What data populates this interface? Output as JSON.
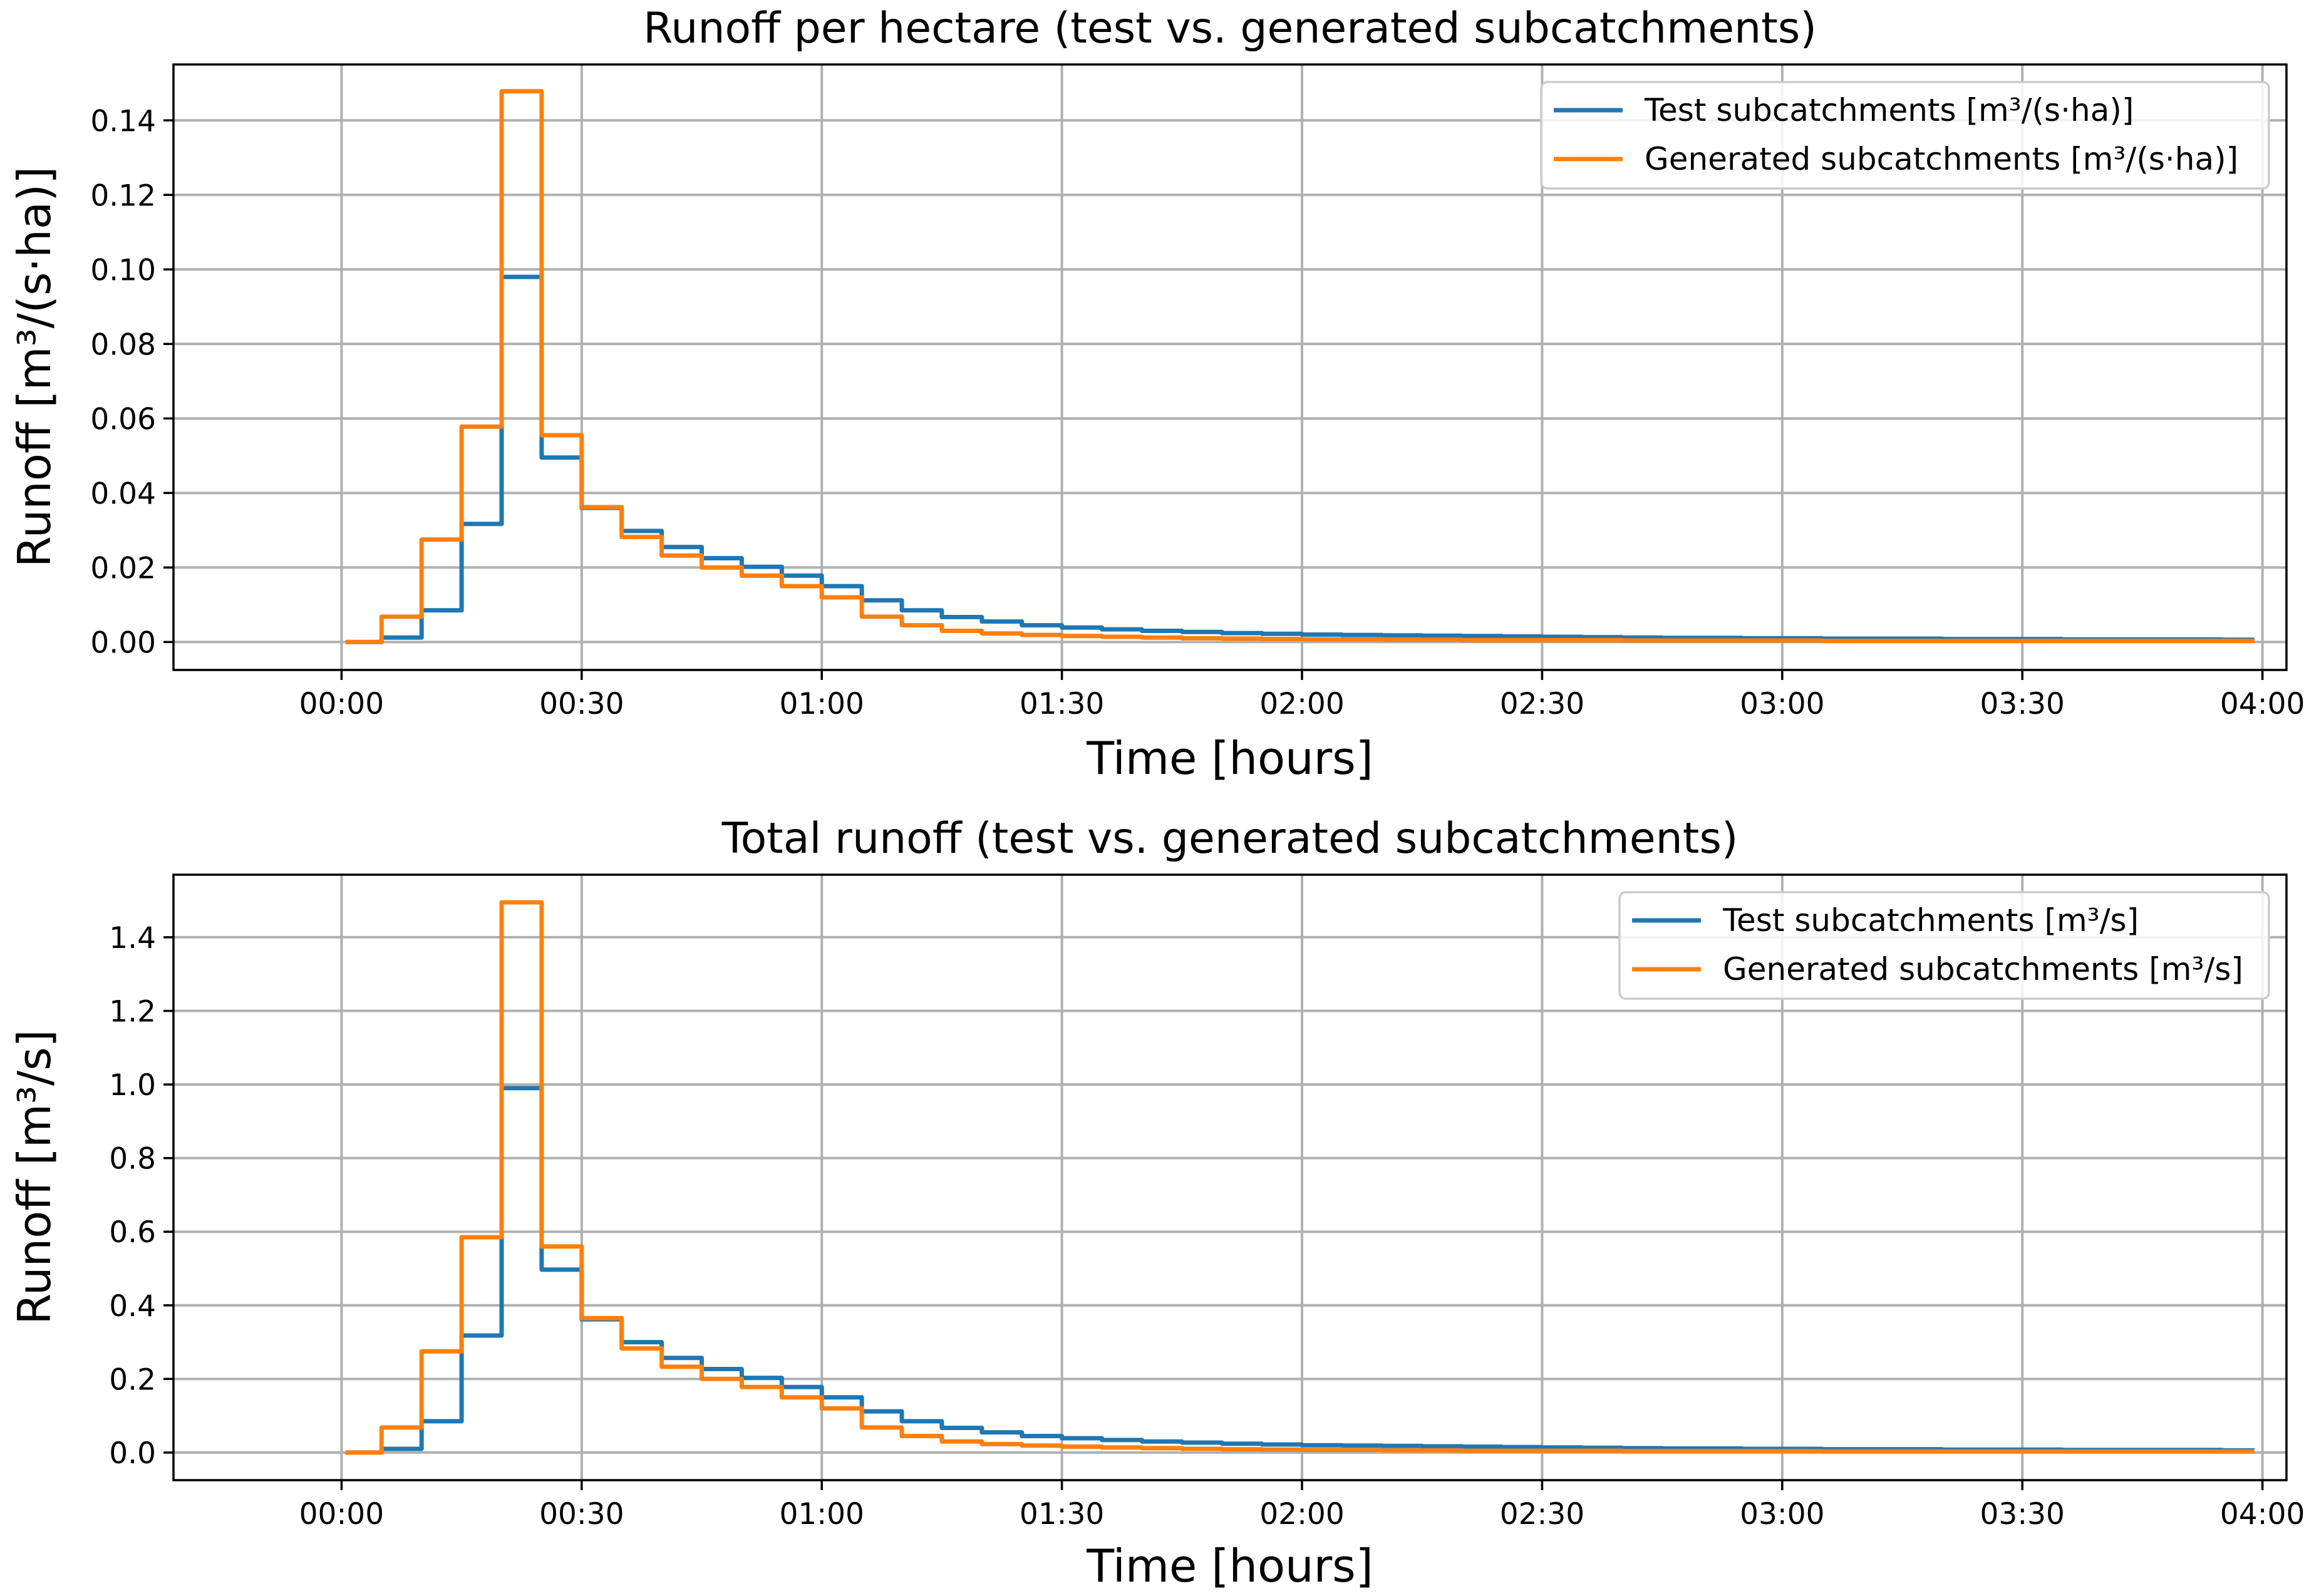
{
  "chart_data": [
    {
      "type": "line",
      "title": "Runoff per hectare (test vs. generated subcatchments)",
      "xlabel": "Time [hours]",
      "ylabel": "Runoff [m³/(s·ha)]",
      "xlim": [
        -0.35,
        4.05
      ],
      "ylim": [
        -0.0075,
        0.155
      ],
      "xticks": [
        0,
        0.5,
        1,
        1.5,
        2,
        2.5,
        3,
        3.5,
        4
      ],
      "xtick_labels": [
        "00:00",
        "00:30",
        "01:00",
        "01:30",
        "02:00",
        "02:30",
        "03:00",
        "03:30",
        "04:00"
      ],
      "yticks": [
        0,
        0.02,
        0.04,
        0.06,
        0.08,
        0.1,
        0.12,
        0.14
      ],
      "ytick_labels": [
        "0.00",
        "0.02",
        "0.04",
        "0.06",
        "0.08",
        "0.10",
        "0.12",
        "0.14"
      ],
      "grid": true,
      "legend_position": "top-right",
      "x": [
        0.0083,
        0.0833,
        0.1667,
        0.25,
        0.3333,
        0.4167,
        0.5,
        0.5833,
        0.6667,
        0.75,
        0.8333,
        0.9167,
        1.0,
        1.0833,
        1.1667,
        1.25,
        1.3333,
        1.4167,
        1.5,
        1.5833,
        1.6667,
        1.75,
        1.8333,
        1.9167,
        2.0,
        2.0833,
        2.1667,
        2.25,
        2.3333,
        2.4167,
        2.5,
        2.5833,
        2.6667,
        2.75,
        2.8333,
        2.9167,
        3.0,
        3.0833,
        3.1667,
        3.25,
        3.3333,
        3.4167,
        3.5,
        3.5833,
        3.6667,
        3.75,
        3.8333,
        3.9167,
        3.9833
      ],
      "series": [
        {
          "name": "Test subcatchments [m³/(s·ha)]",
          "color": "#1f77b4",
          "values": [
            0.0,
            0.0012,
            0.0085,
            0.0317,
            0.098,
            0.0495,
            0.036,
            0.0298,
            0.0255,
            0.0225,
            0.0202,
            0.0178,
            0.015,
            0.0112,
            0.0085,
            0.0067,
            0.0055,
            0.0045,
            0.0039,
            0.0034,
            0.003,
            0.0027,
            0.0024,
            0.0022,
            0.002,
            0.0019,
            0.0018,
            0.0017,
            0.0016,
            0.0015,
            0.0014,
            0.0013,
            0.0012,
            0.0011,
            0.0011,
            0.001,
            0.001,
            0.0009,
            0.0009,
            0.0009,
            0.0008,
            0.0008,
            0.0008,
            0.0007,
            0.0007,
            0.0007,
            0.0007,
            0.0006,
            0.0006
          ]
        },
        {
          "name": "Generated subcatchments [m³/(s·ha)]",
          "color": "#ff7f0e",
          "values": [
            0.0,
            0.0068,
            0.0275,
            0.0578,
            0.1478,
            0.0555,
            0.0362,
            0.0282,
            0.0232,
            0.02,
            0.0178,
            0.015,
            0.012,
            0.0068,
            0.0045,
            0.003,
            0.0023,
            0.0019,
            0.0016,
            0.0014,
            0.0012,
            0.001,
            0.0009,
            0.0008,
            0.0007,
            0.0007,
            0.0006,
            0.0006,
            0.0005,
            0.0005,
            0.0005,
            0.0005,
            0.0004,
            0.0004,
            0.0004,
            0.0004,
            0.0004,
            0.0003,
            0.0003,
            0.0003,
            0.0003,
            0.0003,
            0.0003,
            0.0003,
            0.0003,
            0.0003,
            0.0003,
            0.0003,
            0.0003
          ]
        }
      ]
    },
    {
      "type": "line",
      "title": "Total runoff (test vs. generated subcatchments)",
      "xlabel": "Time [hours]",
      "ylabel": "Runoff [m³/s]",
      "xlim": [
        -0.35,
        4.05
      ],
      "ylim": [
        -0.075,
        1.57
      ],
      "xticks": [
        0,
        0.5,
        1,
        1.5,
        2,
        2.5,
        3,
        3.5,
        4
      ],
      "xtick_labels": [
        "00:00",
        "00:30",
        "01:00",
        "01:30",
        "02:00",
        "02:30",
        "03:00",
        "03:30",
        "04:00"
      ],
      "yticks": [
        0,
        0.2,
        0.4,
        0.6,
        0.8,
        1.0,
        1.2,
        1.4
      ],
      "ytick_labels": [
        "0.0",
        "0.2",
        "0.4",
        "0.6",
        "0.8",
        "1.0",
        "1.2",
        "1.4"
      ],
      "grid": true,
      "legend_position": "top-right",
      "x": [
        0.0083,
        0.0833,
        0.1667,
        0.25,
        0.3333,
        0.4167,
        0.5,
        0.5833,
        0.6667,
        0.75,
        0.8333,
        0.9167,
        1.0,
        1.0833,
        1.1667,
        1.25,
        1.3333,
        1.4167,
        1.5,
        1.5833,
        1.6667,
        1.75,
        1.8333,
        1.9167,
        2.0,
        2.0833,
        2.1667,
        2.25,
        2.3333,
        2.4167,
        2.5,
        2.5833,
        2.6667,
        2.75,
        2.8333,
        2.9167,
        3.0,
        3.0833,
        3.1667,
        3.25,
        3.3333,
        3.4167,
        3.5,
        3.5833,
        3.6667,
        3.75,
        3.8333,
        3.9167,
        3.9833
      ],
      "series": [
        {
          "name": "Test subcatchments [m³/s]",
          "color": "#1f77b4",
          "values": [
            0.0,
            0.01,
            0.085,
            0.318,
            0.99,
            0.497,
            0.362,
            0.3,
            0.257,
            0.227,
            0.203,
            0.178,
            0.15,
            0.112,
            0.085,
            0.067,
            0.055,
            0.045,
            0.039,
            0.034,
            0.03,
            0.027,
            0.024,
            0.022,
            0.02,
            0.019,
            0.018,
            0.017,
            0.016,
            0.015,
            0.014,
            0.013,
            0.012,
            0.011,
            0.011,
            0.01,
            0.01,
            0.009,
            0.009,
            0.009,
            0.008,
            0.008,
            0.008,
            0.007,
            0.007,
            0.007,
            0.007,
            0.006,
            0.006
          ]
        },
        {
          "name": "Generated subcatchments [m³/s]",
          "color": "#ff7f0e",
          "values": [
            0.0,
            0.068,
            0.275,
            0.585,
            1.495,
            0.56,
            0.365,
            0.283,
            0.233,
            0.2,
            0.178,
            0.15,
            0.12,
            0.068,
            0.045,
            0.03,
            0.023,
            0.019,
            0.016,
            0.014,
            0.012,
            0.01,
            0.009,
            0.008,
            0.007,
            0.007,
            0.006,
            0.006,
            0.005,
            0.005,
            0.005,
            0.005,
            0.004,
            0.004,
            0.004,
            0.004,
            0.004,
            0.003,
            0.003,
            0.003,
            0.003,
            0.003,
            0.003,
            0.003,
            0.003,
            0.003,
            0.003,
            0.003,
            0.003
          ]
        }
      ]
    }
  ]
}
